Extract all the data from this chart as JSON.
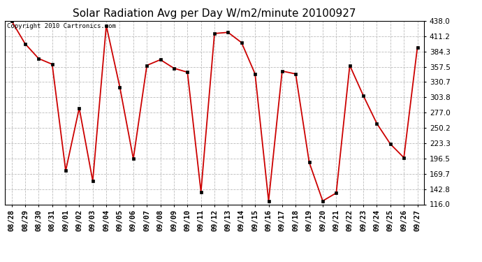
{
  "title": "Solar Radiation Avg per Day W/m2/minute 20100927",
  "copyright": "Copyright 2010 Cartronics.com",
  "labels": [
    "08/28",
    "08/29",
    "08/30",
    "08/31",
    "09/01",
    "09/02",
    "09/03",
    "09/04",
    "09/05",
    "09/06",
    "09/07",
    "09/08",
    "09/09",
    "09/10",
    "09/11",
    "09/12",
    "09/13",
    "09/14",
    "09/15",
    "09/16",
    "09/17",
    "09/18",
    "09/19",
    "09/20",
    "09/21",
    "09/22",
    "09/23",
    "09/24",
    "09/25",
    "09/26",
    "09/27"
  ],
  "values": [
    438.0,
    398.0,
    372.0,
    362.0,
    175.0,
    285.0,
    157.0,
    430.0,
    322.0,
    196.0,
    360.0,
    370.0,
    355.0,
    348.0,
    138.0,
    416.0,
    418.0,
    400.0,
    345.0,
    122.0,
    350.0,
    345.0,
    190.0,
    122.0,
    136.0,
    360.0,
    307.0,
    258.0,
    222.0,
    198.0,
    392.0
  ],
  "line_color": "#cc0000",
  "background_color": "#ffffff",
  "grid_color": "#bbbbbb",
  "ylim": [
    116.0,
    438.0
  ],
  "yticks": [
    116.0,
    142.8,
    169.7,
    196.5,
    223.3,
    250.2,
    277.0,
    303.8,
    330.7,
    357.5,
    384.3,
    411.2,
    438.0
  ],
  "title_fontsize": 11,
  "copyright_fontsize": 6.5,
  "tick_fontsize": 7.5
}
